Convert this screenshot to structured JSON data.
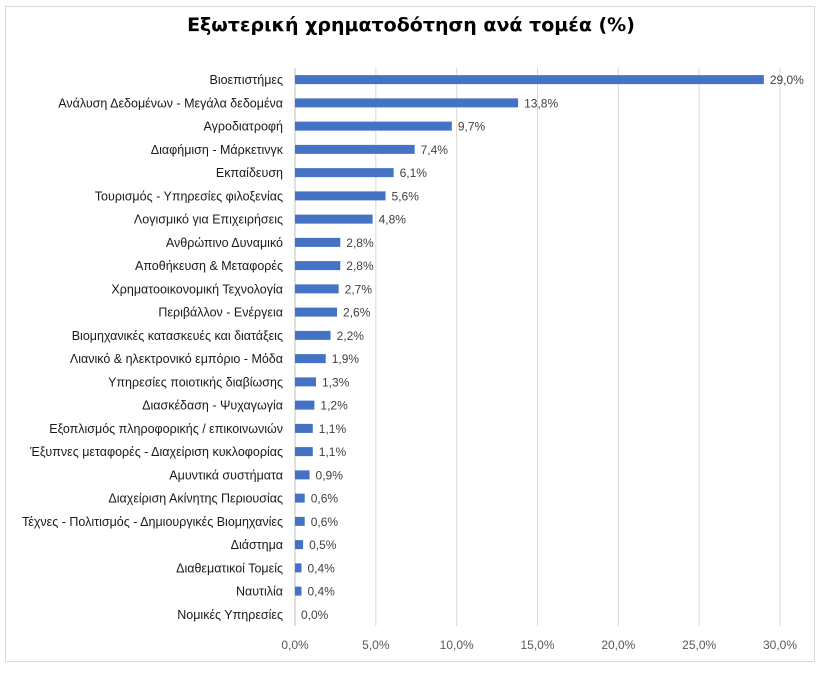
{
  "chart_data": {
    "type": "bar",
    "orientation": "horizontal",
    "title": "Εξωτερική χρηματοδότηση ανά τομέα (%)",
    "categories": [
      "Βιοεπιστήμες",
      "Ανάλυση Δεδομένων - Μεγάλα δεδομένα",
      "Αγροδιατροφή",
      "Διαφήμιση - Μάρκετινγκ",
      "Εκπαίδευση",
      "Τουρισμός - Υπηρεσίες φιλοξενίας",
      "Λογισμικό για Επιχειρήσεις",
      "Ανθρώπινο Δυναμικό",
      "Αποθήκευση & Μεταφορές",
      "Χρηματοοικονομική Τεχνολογία",
      "Περιβάλλον - Ενέργεια",
      "Βιομηχανικές κατασκευές και διατάξεις",
      "Λιανικό & ηλεκτρονικό εμπόριο - Μόδα",
      "Υπηρεσίες ποιοτικής διαβίωσης",
      "Διασκέδαση - Ψυχαγωγία",
      "Εξοπλισμός πληροφορικής / επικοινωνιών",
      "Έξυπνες μεταφορές - Διαχείριση κυκλοφορίας",
      "Αμυντικά συστήματα",
      "Διαχείριση Ακίνητης Περιουσίας",
      "Τέχνες - Πολιτισμός - Δημιουργικές Βιομηχανίες",
      "Διάστημα",
      "Διαθεματικοί Τομείς",
      "Ναυτιλία",
      "Νομικές Υπηρεσίες"
    ],
    "values": [
      29.0,
      13.8,
      9.7,
      7.4,
      6.1,
      5.6,
      4.8,
      2.8,
      2.8,
      2.7,
      2.6,
      2.2,
      1.9,
      1.3,
      1.2,
      1.1,
      1.1,
      0.9,
      0.6,
      0.6,
      0.5,
      0.4,
      0.4,
      0.0
    ],
    "value_labels": [
      "29,0%",
      "13,8%",
      "9,7%",
      "7,4%",
      "6,1%",
      "5,6%",
      "4,8%",
      "2,8%",
      "2,8%",
      "2,7%",
      "2,6%",
      "2,2%",
      "1,9%",
      "1,3%",
      "1,2%",
      "1,1%",
      "1,1%",
      "0,9%",
      "0,6%",
      "0,6%",
      "0,5%",
      "0,4%",
      "0,4%",
      "0,0%"
    ],
    "xlim": [
      0,
      30
    ],
    "x_ticks": [
      0,
      5,
      10,
      15,
      20,
      25,
      30
    ],
    "x_tick_labels": [
      "0,0%",
      "5,0%",
      "10,0%",
      "15,0%",
      "20,0%",
      "25,0%",
      "30,0%"
    ],
    "grid": true,
    "legend": false,
    "bar_color": "#4472C4"
  }
}
